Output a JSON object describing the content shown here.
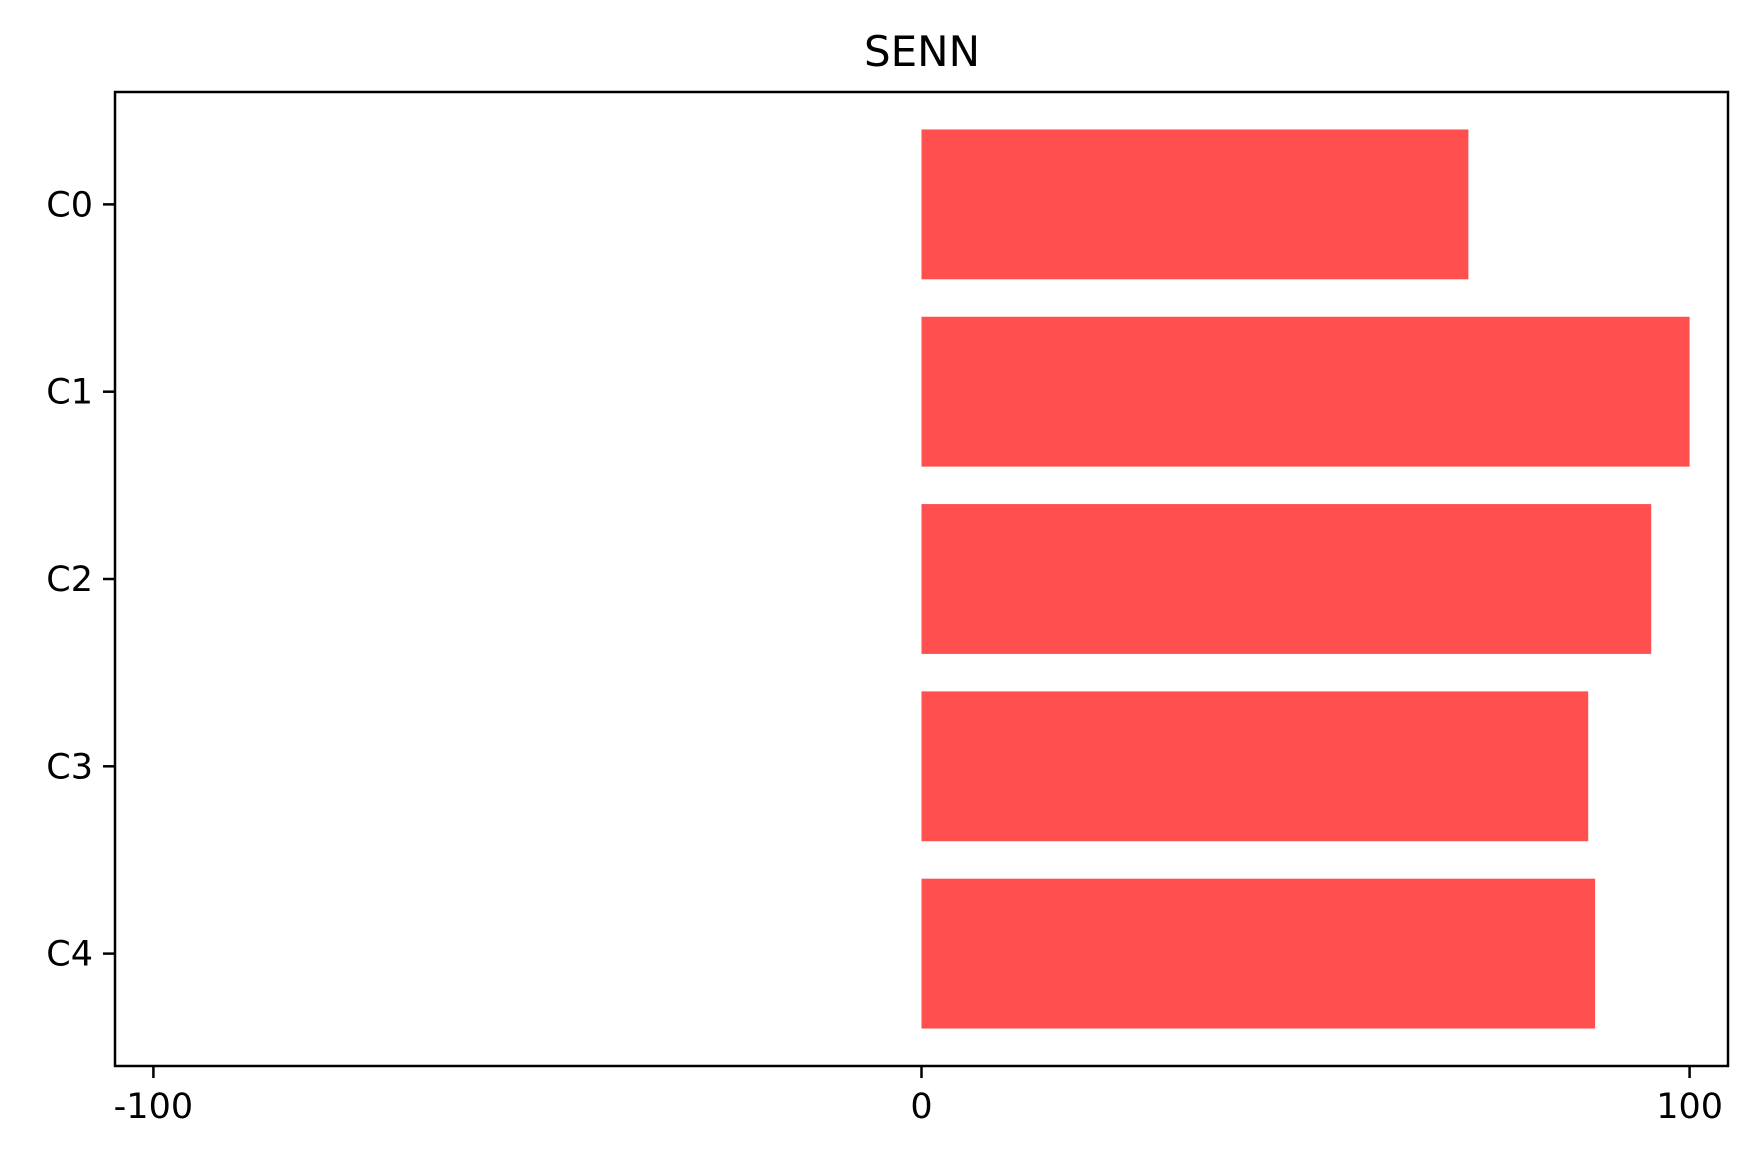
{
  "chart_data": {
    "type": "bar",
    "orientation": "horizontal",
    "title": "SENN",
    "xlabel": "",
    "ylabel": "",
    "categories": [
      "C0",
      "C1",
      "C2",
      "C3",
      "C4"
    ],
    "values": [
      71.2,
      100,
      95,
      86.8,
      87.7
    ],
    "xlim": [
      -105,
      105
    ],
    "x_ticks": [
      -100,
      0,
      100
    ],
    "x_tick_labels": [
      "-100",
      "0",
      "100"
    ],
    "grid": false,
    "legend": "none",
    "bar_color": "#ff4f4f"
  }
}
